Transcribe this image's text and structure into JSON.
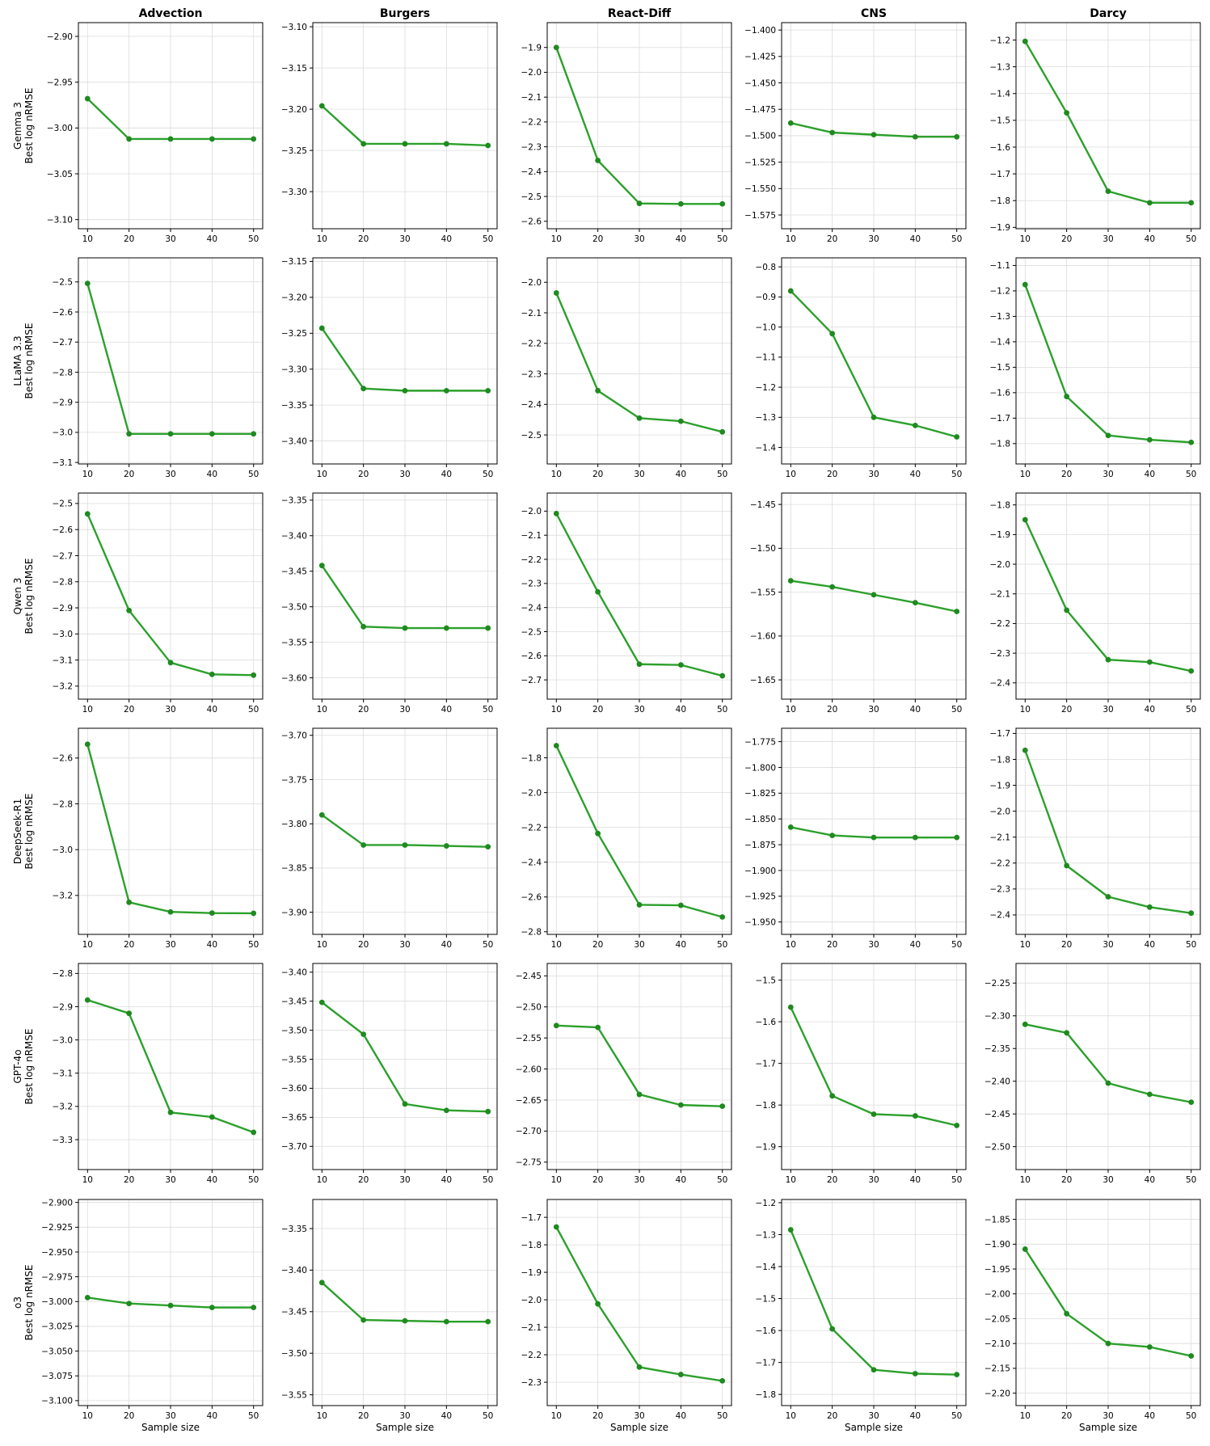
{
  "columns": [
    "Advection",
    "Burgers",
    "React-Diff",
    "CNS",
    "Darcy"
  ],
  "rows": [
    {
      "model": "Gemma 3",
      "ylabel": "Best log nRMSE"
    },
    {
      "model": "LLaMA 3.3",
      "ylabel": "Best log nRMSE"
    },
    {
      "model": "Qwen 3",
      "ylabel": "Best log nRMSE"
    },
    {
      "model": "DeepSeek-R1",
      "ylabel": "Best log nRMSE"
    },
    {
      "model": "GPT-4o",
      "ylabel": "Best log nRMSE"
    },
    {
      "model": "o3",
      "ylabel": "Best log nRMSE"
    }
  ],
  "xlabel": "Sample size",
  "colors": {
    "line": "#2ca02c",
    "marker": "#1f8a1f",
    "grid": "#dcdcdc"
  },
  "chart_data": [
    {
      "type": "line",
      "row": 0,
      "col": 0,
      "x": [
        10,
        20,
        30,
        40,
        50
      ],
      "y": [
        -2.968,
        -3.012,
        -3.012,
        -3.012,
        -3.012
      ],
      "ylim": [
        -3.11,
        -2.885
      ],
      "yticks": [
        "-2.90",
        "-2.95",
        "-3.00",
        "-3.05",
        "-3.10"
      ],
      "ytickvals": [
        -2.9,
        -2.95,
        -3.0,
        -3.05,
        -3.1
      ],
      "grid": true
    },
    {
      "type": "line",
      "row": 0,
      "col": 1,
      "x": [
        10,
        20,
        30,
        40,
        50
      ],
      "y": [
        -3.196,
        -3.242,
        -3.242,
        -3.242,
        -3.244
      ],
      "ylim": [
        -3.345,
        -3.095
      ],
      "yticks": [
        "-3.10",
        "-3.15",
        "-3.20",
        "-3.25",
        "-3.30"
      ],
      "ytickvals": [
        -3.1,
        -3.15,
        -3.2,
        -3.25,
        -3.3
      ],
      "grid": true
    },
    {
      "type": "line",
      "row": 0,
      "col": 2,
      "x": [
        10,
        20,
        30,
        40,
        50
      ],
      "y": [
        -1.9,
        -2.355,
        -2.528,
        -2.53,
        -2.53
      ],
      "ylim": [
        -2.63,
        -1.8
      ],
      "yticks": [
        "-1.9",
        "-2.0",
        "-2.1",
        "-2.2",
        "-2.3",
        "-2.4",
        "-2.5",
        "-2.6"
      ],
      "ytickvals": [
        -1.9,
        -2.0,
        -2.1,
        -2.2,
        -2.3,
        -2.4,
        -2.5,
        -2.6
      ],
      "grid": true
    },
    {
      "type": "line",
      "row": 0,
      "col": 3,
      "x": [
        10,
        20,
        30,
        40,
        50
      ],
      "y": [
        -1.488,
        -1.497,
        -1.499,
        -1.501,
        -1.501
      ],
      "ylim": [
        -1.588,
        -1.393
      ],
      "yticks": [
        "-1.400",
        "-1.425",
        "-1.450",
        "-1.475",
        "-1.500",
        "-1.525",
        "-1.550",
        "-1.575"
      ],
      "ytickvals": [
        -1.4,
        -1.425,
        -1.45,
        -1.475,
        -1.5,
        -1.525,
        -1.55,
        -1.575
      ],
      "grid": true
    },
    {
      "type": "line",
      "row": 0,
      "col": 4,
      "x": [
        10,
        20,
        30,
        40,
        50
      ],
      "y": [
        -1.205,
        -1.472,
        -1.765,
        -1.808,
        -1.808
      ],
      "ylim": [
        -1.905,
        -1.135
      ],
      "yticks": [
        "-1.2",
        "-1.3",
        "-1.4",
        "-1.5",
        "-1.6",
        "-1.7",
        "-1.8",
        "-1.9"
      ],
      "ytickvals": [
        -1.2,
        -1.3,
        -1.4,
        -1.5,
        -1.6,
        -1.7,
        -1.8,
        -1.9
      ],
      "grid": true
    },
    {
      "type": "line",
      "row": 1,
      "col": 0,
      "x": [
        10,
        20,
        30,
        40,
        50
      ],
      "y": [
        -2.505,
        -3.005,
        -3.005,
        -3.005,
        -3.005
      ],
      "ylim": [
        -3.105,
        -2.42
      ],
      "yticks": [
        "-2.5",
        "-2.6",
        "-2.7",
        "-2.8",
        "-2.9",
        "-3.0",
        "-3.1"
      ],
      "ytickvals": [
        -2.5,
        -2.6,
        -2.7,
        -2.8,
        -2.9,
        -3.0,
        -3.1
      ],
      "grid": true
    },
    {
      "type": "line",
      "row": 1,
      "col": 1,
      "x": [
        10,
        20,
        30,
        40,
        50
      ],
      "y": [
        -3.243,
        -3.327,
        -3.33,
        -3.33,
        -3.33
      ],
      "ylim": [
        -3.432,
        -3.145
      ],
      "yticks": [
        "-3.15",
        "-3.20",
        "-3.25",
        "-3.30",
        "-3.35",
        "-3.40"
      ],
      "ytickvals": [
        -3.15,
        -3.2,
        -3.25,
        -3.3,
        -3.35,
        -3.4
      ],
      "grid": true
    },
    {
      "type": "line",
      "row": 1,
      "col": 2,
      "x": [
        10,
        20,
        30,
        40,
        50
      ],
      "y": [
        -2.035,
        -2.355,
        -2.445,
        -2.455,
        -2.49
      ],
      "ylim": [
        -2.595,
        -1.92
      ],
      "yticks": [
        "-2.0",
        "-2.1",
        "-2.2",
        "-2.3",
        "-2.4",
        "-2.5"
      ],
      "ytickvals": [
        -2.0,
        -2.1,
        -2.2,
        -2.3,
        -2.4,
        -2.5
      ],
      "grid": true
    },
    {
      "type": "line",
      "row": 1,
      "col": 3,
      "x": [
        10,
        20,
        30,
        40,
        50
      ],
      "y": [
        -0.88,
        -1.022,
        -1.3,
        -1.327,
        -1.365
      ],
      "ylim": [
        -1.455,
        -0.77
      ],
      "yticks": [
        "-0.8",
        "-0.9",
        "-1.0",
        "-1.1",
        "-1.2",
        "-1.3",
        "-1.4"
      ],
      "ytickvals": [
        -0.8,
        -0.9,
        -1.0,
        -1.1,
        -1.2,
        -1.3,
        -1.4
      ],
      "grid": true
    },
    {
      "type": "line",
      "row": 1,
      "col": 4,
      "x": [
        10,
        20,
        30,
        40,
        50
      ],
      "y": [
        -1.175,
        -1.615,
        -1.768,
        -1.785,
        -1.795
      ],
      "ylim": [
        -1.88,
        -1.07
      ],
      "yticks": [
        "-1.1",
        "-1.2",
        "-1.3",
        "-1.4",
        "-1.5",
        "-1.6",
        "-1.7",
        "-1.8"
      ],
      "ytickvals": [
        -1.1,
        -1.2,
        -1.3,
        -1.4,
        -1.5,
        -1.6,
        -1.7,
        -1.8
      ],
      "grid": true
    },
    {
      "type": "line",
      "row": 2,
      "col": 0,
      "x": [
        10,
        20,
        30,
        40,
        50
      ],
      "y": [
        -2.54,
        -2.91,
        -3.11,
        -3.155,
        -3.158
      ],
      "ylim": [
        -3.25,
        -2.46
      ],
      "yticks": [
        "-2.5",
        "-2.6",
        "-2.7",
        "-2.8",
        "-2.9",
        "-3.0",
        "-3.1",
        "-3.2"
      ],
      "ytickvals": [
        -2.5,
        -2.6,
        -2.7,
        -2.8,
        -2.9,
        -3.0,
        -3.1,
        -3.2
      ],
      "grid": true
    },
    {
      "type": "line",
      "row": 2,
      "col": 1,
      "x": [
        10,
        20,
        30,
        40,
        50
      ],
      "y": [
        -3.442,
        -3.528,
        -3.53,
        -3.53,
        -3.53
      ],
      "ylim": [
        -3.63,
        -3.34
      ],
      "yticks": [
        "-3.35",
        "-3.40",
        "-3.45",
        "-3.50",
        "-3.55",
        "-3.60"
      ],
      "ytickvals": [
        -3.35,
        -3.4,
        -3.45,
        -3.5,
        -3.55,
        -3.6
      ],
      "grid": true
    },
    {
      "type": "line",
      "row": 2,
      "col": 2,
      "x": [
        10,
        20,
        30,
        40,
        50
      ],
      "y": [
        -2.01,
        -2.335,
        -2.635,
        -2.638,
        -2.683
      ],
      "ylim": [
        -2.78,
        -1.925
      ],
      "yticks": [
        "-2.0",
        "-2.1",
        "-2.2",
        "-2.3",
        "-2.4",
        "-2.5",
        "-2.6",
        "-2.7"
      ],
      "ytickvals": [
        -2.0,
        -2.1,
        -2.2,
        -2.3,
        -2.4,
        -2.5,
        -2.6,
        -2.7
      ],
      "grid": true
    },
    {
      "type": "line",
      "row": 2,
      "col": 3,
      "x": [
        10,
        20,
        30,
        40,
        50
      ],
      "y": [
        -1.537,
        -1.544,
        -1.553,
        -1.562,
        -1.572
      ],
      "ylim": [
        -1.672,
        -1.437
      ],
      "yticks": [
        "-1.45",
        "-1.50",
        "-1.55",
        "-1.60",
        "-1.65"
      ],
      "ytickvals": [
        -1.45,
        -1.5,
        -1.55,
        -1.6,
        -1.65
      ],
      "grid": true
    },
    {
      "type": "line",
      "row": 2,
      "col": 4,
      "x": [
        10,
        20,
        30,
        40,
        50
      ],
      "y": [
        -1.85,
        -2.155,
        -2.322,
        -2.33,
        -2.36
      ],
      "ylim": [
        -2.455,
        -1.76
      ],
      "yticks": [
        "-1.8",
        "-1.9",
        "-2.0",
        "-2.1",
        "-2.2",
        "-2.3",
        "-2.4"
      ],
      "ytickvals": [
        -1.8,
        -1.9,
        -2.0,
        -2.1,
        -2.2,
        -2.3,
        -2.4
      ],
      "grid": true
    },
    {
      "type": "line",
      "row": 3,
      "col": 0,
      "x": [
        10,
        20,
        30,
        40,
        50
      ],
      "y": [
        -2.54,
        -3.23,
        -3.272,
        -3.277,
        -3.278
      ],
      "ylim": [
        -3.37,
        -2.47
      ],
      "yticks": [
        "-2.6",
        "-2.8",
        "-3.0",
        "-3.2"
      ],
      "ytickvals": [
        -2.6,
        -2.8,
        -3.0,
        -3.2
      ],
      "grid": true
    },
    {
      "type": "line",
      "row": 3,
      "col": 1,
      "x": [
        10,
        20,
        30,
        40,
        50
      ],
      "y": [
        -3.79,
        -3.824,
        -3.824,
        -3.825,
        -3.826
      ],
      "ylim": [
        -3.925,
        -3.692
      ],
      "yticks": [
        "-3.70",
        "-3.75",
        "-3.80",
        "-3.85",
        "-3.90"
      ],
      "ytickvals": [
        -3.7,
        -3.75,
        -3.8,
        -3.85,
        -3.9
      ],
      "grid": true
    },
    {
      "type": "line",
      "row": 3,
      "col": 2,
      "x": [
        10,
        20,
        30,
        40,
        50
      ],
      "y": [
        -1.73,
        -2.235,
        -2.645,
        -2.648,
        -2.715
      ],
      "ylim": [
        -2.815,
        -1.63
      ],
      "yticks": [
        "-1.8",
        "-2.0",
        "-2.2",
        "-2.4",
        "-2.6",
        "-2.8"
      ],
      "ytickvals": [
        -1.8,
        -2.0,
        -2.2,
        -2.4,
        -2.6,
        -2.8
      ],
      "grid": true
    },
    {
      "type": "line",
      "row": 3,
      "col": 3,
      "x": [
        10,
        20,
        30,
        40,
        50
      ],
      "y": [
        -1.858,
        -1.866,
        -1.868,
        -1.868,
        -1.868
      ],
      "ylim": [
        -1.962,
        -1.762
      ],
      "yticks": [
        "-1.775",
        "-1.800",
        "-1.825",
        "-1.850",
        "-1.875",
        "-1.900",
        "-1.925",
        "-1.950"
      ],
      "ytickvals": [
        -1.775,
        -1.8,
        -1.825,
        -1.85,
        -1.875,
        -1.9,
        -1.925,
        -1.95
      ],
      "grid": true
    },
    {
      "type": "line",
      "row": 3,
      "col": 4,
      "x": [
        10,
        20,
        30,
        40,
        50
      ],
      "y": [
        -1.765,
        -2.21,
        -2.33,
        -2.37,
        -2.393
      ],
      "ylim": [
        -2.475,
        -1.68
      ],
      "yticks": [
        "-1.7",
        "-1.8",
        "-1.9",
        "-2.0",
        "-2.1",
        "-2.2",
        "-2.3",
        "-2.4"
      ],
      "ytickvals": [
        -1.7,
        -1.8,
        -1.9,
        -2.0,
        -2.1,
        -2.2,
        -2.3,
        -2.4
      ],
      "grid": true
    },
    {
      "type": "line",
      "row": 4,
      "col": 0,
      "x": [
        10,
        20,
        30,
        40,
        50
      ],
      "y": [
        -2.88,
        -2.92,
        -3.218,
        -3.232,
        -3.278
      ],
      "ylim": [
        -3.39,
        -2.77
      ],
      "yticks": [
        "-2.8",
        "-2.9",
        "-3.0",
        "-3.1",
        "-3.2",
        "-3.3"
      ],
      "ytickvals": [
        -2.8,
        -2.9,
        -3.0,
        -3.1,
        -3.2,
        -3.3
      ],
      "grid": true
    },
    {
      "type": "line",
      "row": 4,
      "col": 1,
      "x": [
        10,
        20,
        30,
        40,
        50
      ],
      "y": [
        -3.452,
        -3.507,
        -3.627,
        -3.638,
        -3.64
      ],
      "ylim": [
        -3.74,
        -3.385
      ],
      "yticks": [
        "-3.40",
        "-3.45",
        "-3.50",
        "-3.55",
        "-3.60",
        "-3.65",
        "-3.70"
      ],
      "ytickvals": [
        -3.4,
        -3.45,
        -3.5,
        -3.55,
        -3.6,
        -3.65,
        -3.7
      ],
      "grid": true
    },
    {
      "type": "line",
      "row": 4,
      "col": 2,
      "x": [
        10,
        20,
        30,
        40,
        50
      ],
      "y": [
        -2.53,
        -2.533,
        -2.641,
        -2.658,
        -2.66
      ],
      "ylim": [
        -2.762,
        -2.43
      ],
      "yticks": [
        "-2.45",
        "-2.50",
        "-2.55",
        "-2.60",
        "-2.65",
        "-2.70",
        "-2.75"
      ],
      "ytickvals": [
        -2.45,
        -2.5,
        -2.55,
        -2.6,
        -2.65,
        -2.7,
        -2.75
      ],
      "grid": true
    },
    {
      "type": "line",
      "row": 4,
      "col": 3,
      "x": [
        10,
        20,
        30,
        40,
        50
      ],
      "y": [
        -1.565,
        -1.778,
        -1.822,
        -1.826,
        -1.849
      ],
      "ylim": [
        -1.955,
        -1.46
      ],
      "yticks": [
        "-1.5",
        "-1.6",
        "-1.7",
        "-1.8",
        "-1.9"
      ],
      "ytickvals": [
        -1.5,
        -1.6,
        -1.7,
        -1.8,
        -1.9
      ],
      "grid": true
    },
    {
      "type": "line",
      "row": 4,
      "col": 4,
      "x": [
        10,
        20,
        30,
        40,
        50
      ],
      "y": [
        -2.313,
        -2.326,
        -2.403,
        -2.42,
        -2.432
      ],
      "ylim": [
        -2.535,
        -2.22
      ],
      "yticks": [
        "-2.25",
        "-2.30",
        "-2.35",
        "-2.40",
        "-2.45",
        "-2.50"
      ],
      "ytickvals": [
        -2.25,
        -2.3,
        -2.35,
        -2.4,
        -2.45,
        -2.5
      ],
      "grid": true
    },
    {
      "type": "line",
      "row": 5,
      "col": 0,
      "x": [
        10,
        20,
        30,
        40,
        50
      ],
      "y": [
        -2.996,
        -3.002,
        -3.004,
        -3.006,
        -3.006
      ],
      "ylim": [
        -3.105,
        -2.897
      ],
      "yticks": [
        "-2.900",
        "-2.925",
        "-2.950",
        "-2.975",
        "-3.000",
        "-3.025",
        "-3.050",
        "-3.075",
        "-3.100"
      ],
      "ytickvals": [
        -2.9,
        -2.925,
        -2.95,
        -2.975,
        -3.0,
        -3.025,
        -3.05,
        -3.075,
        -3.1
      ],
      "grid": true
    },
    {
      "type": "line",
      "row": 5,
      "col": 1,
      "x": [
        10,
        20,
        30,
        40,
        50
      ],
      "y": [
        -3.415,
        -3.46,
        -3.461,
        -3.462,
        -3.462
      ],
      "ylim": [
        -3.563,
        -3.315
      ],
      "yticks": [
        "-3.35",
        "-3.40",
        "-3.45",
        "-3.50",
        "-3.55"
      ],
      "ytickvals": [
        -3.35,
        -3.4,
        -3.45,
        -3.5,
        -3.55
      ],
      "grid": true
    },
    {
      "type": "line",
      "row": 5,
      "col": 2,
      "x": [
        10,
        20,
        30,
        40,
        50
      ],
      "y": [
        -1.735,
        -2.015,
        -2.245,
        -2.272,
        -2.295
      ],
      "ylim": [
        -2.385,
        -1.635
      ],
      "yticks": [
        "-1.7",
        "-1.8",
        "-1.9",
        "-2.0",
        "-2.1",
        "-2.2",
        "-2.3"
      ],
      "ytickvals": [
        -1.7,
        -1.8,
        -1.9,
        -2.0,
        -2.1,
        -2.2,
        -2.3
      ],
      "grid": true
    },
    {
      "type": "line",
      "row": 5,
      "col": 3,
      "x": [
        10,
        20,
        30,
        40,
        50
      ],
      "y": [
        -1.285,
        -1.595,
        -1.723,
        -1.735,
        -1.738
      ],
      "ylim": [
        -1.835,
        -1.19
      ],
      "yticks": [
        "-1.2",
        "-1.3",
        "-1.4",
        "-1.5",
        "-1.6",
        "-1.7",
        "-1.8"
      ],
      "ytickvals": [
        -1.2,
        -1.3,
        -1.4,
        -1.5,
        -1.6,
        -1.7,
        -1.8
      ],
      "grid": true
    },
    {
      "type": "line",
      "row": 5,
      "col": 4,
      "x": [
        10,
        20,
        30,
        40,
        50
      ],
      "y": [
        -1.91,
        -2.04,
        -2.1,
        -2.107,
        -2.125
      ],
      "ylim": [
        -2.225,
        -1.81
      ],
      "yticks": [
        "-1.85",
        "-1.90",
        "-1.95",
        "-2.00",
        "-2.05",
        "-2.10",
        "-2.15",
        "-2.20"
      ],
      "ytickvals": [
        -1.85,
        -1.9,
        -1.95,
        -2.0,
        -2.05,
        -2.1,
        -2.15,
        -2.2
      ],
      "grid": true
    }
  ]
}
